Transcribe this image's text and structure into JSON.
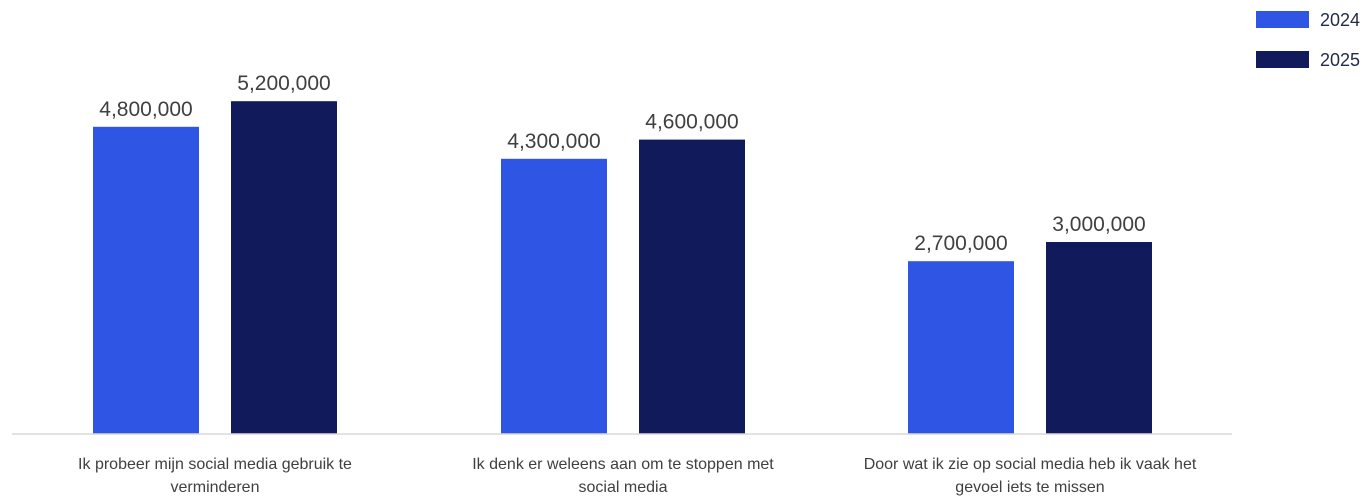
{
  "chart_data": {
    "type": "bar",
    "title": "",
    "categories": [
      [
        "Ik probeer mijn social media gebruik te",
        "verminderen"
      ],
      [
        "Ik denk er weleens aan om te stoppen met",
        "social media"
      ],
      [
        "Door wat ik zie op social media heb ik vaak het",
        "gevoel iets te missen"
      ]
    ],
    "series": [
      {
        "name": "2024",
        "color": "#2f55e4",
        "values": [
          4800000,
          4300000,
          2700000
        ],
        "labels": [
          "4,800,000",
          "4,300,000",
          "2,700,000"
        ]
      },
      {
        "name": "2025",
        "color": "#111b5c",
        "values": [
          5200000,
          4600000,
          3000000
        ],
        "labels": [
          "5,200,000",
          "4,600,000",
          "3,000,000"
        ]
      }
    ],
    "ylim": [
      0,
      6500000
    ],
    "grid": false,
    "legend_position": "top-right",
    "xlabel": "",
    "ylabel": ""
  }
}
